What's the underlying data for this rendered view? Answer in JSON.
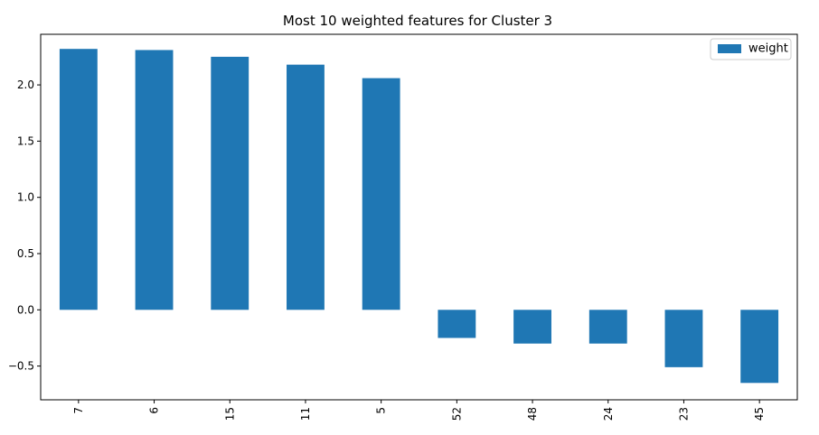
{
  "chart_data": {
    "type": "bar",
    "title": "Most 10 weighted features for Cluster 3",
    "xlabel": "",
    "ylabel": "",
    "categories": [
      "7",
      "6",
      "15",
      "11",
      "5",
      "52",
      "48",
      "24",
      "23",
      "45"
    ],
    "series": [
      {
        "name": "weight",
        "values": [
          2.32,
          2.31,
          2.25,
          2.18,
          2.06,
          -0.25,
          -0.3,
          -0.3,
          -0.51,
          -0.65
        ]
      }
    ],
    "ylim": [
      -0.8,
      2.45
    ],
    "yticks": [
      -0.5,
      0.0,
      0.5,
      1.0,
      1.5,
      2.0
    ],
    "ytick_labels": [
      "−0.5",
      "0.0",
      "0.5",
      "1.0",
      "1.5",
      "2.0"
    ],
    "grid": false,
    "legend_position": "top-right",
    "bar_color": "#1f77b4",
    "x_tick_rotation": "vertical"
  }
}
